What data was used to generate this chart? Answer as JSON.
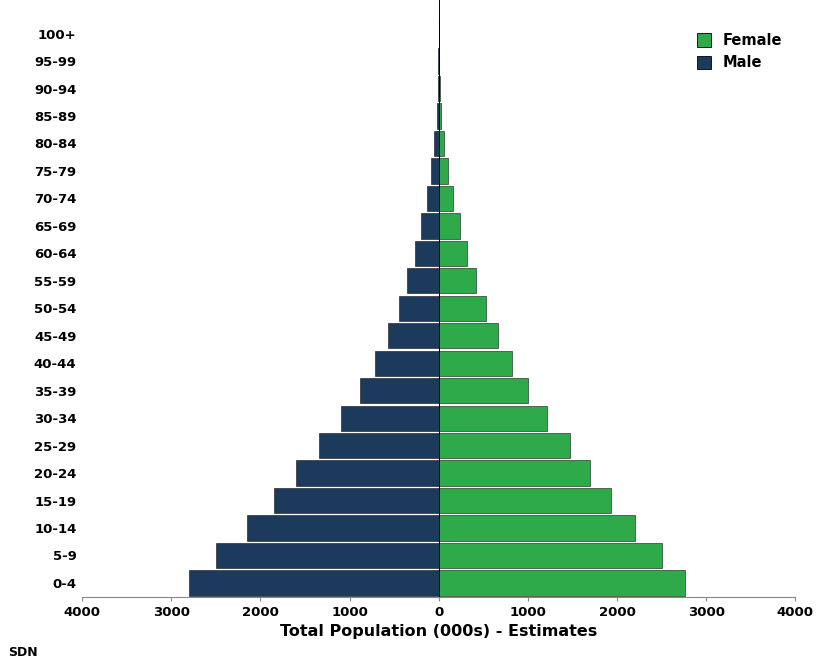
{
  "age_groups": [
    "0-4",
    "5-9",
    "10-14",
    "15-19",
    "20-24",
    "25-29",
    "30-34",
    "35-39",
    "40-44",
    "45-49",
    "50-54",
    "55-59",
    "60-64",
    "65-69",
    "70-74",
    "75-79",
    "80-84",
    "85-89",
    "90-94",
    "95-99",
    "100+"
  ],
  "male": [
    2800,
    2500,
    2150,
    1850,
    1600,
    1340,
    1100,
    880,
    710,
    570,
    450,
    350,
    265,
    195,
    135,
    85,
    48,
    22,
    9,
    3,
    1
  ],
  "female": [
    2760,
    2500,
    2200,
    1930,
    1700,
    1470,
    1220,
    1000,
    820,
    665,
    535,
    420,
    320,
    240,
    160,
    100,
    55,
    25,
    10,
    4,
    1
  ],
  "male_color": "#1B3A5C",
  "female_color": "#2EAA4A",
  "xlabel": "Total Population (000s) - Estimates",
  "xlim": [
    -4000,
    4000
  ],
  "xticks": [
    -4000,
    -3000,
    -2000,
    -1000,
    0,
    1000,
    2000,
    3000,
    4000
  ],
  "xtick_labels": [
    "4000",
    "3000",
    "2000",
    "1000",
    "0",
    "1000",
    "2000",
    "3000",
    "4000"
  ],
  "background_color": "white",
  "legend_female": "Female",
  "legend_male": "Male",
  "watermark": "SDN",
  "bar_edgecolor": "#111111",
  "bar_linewidth": 0.4
}
